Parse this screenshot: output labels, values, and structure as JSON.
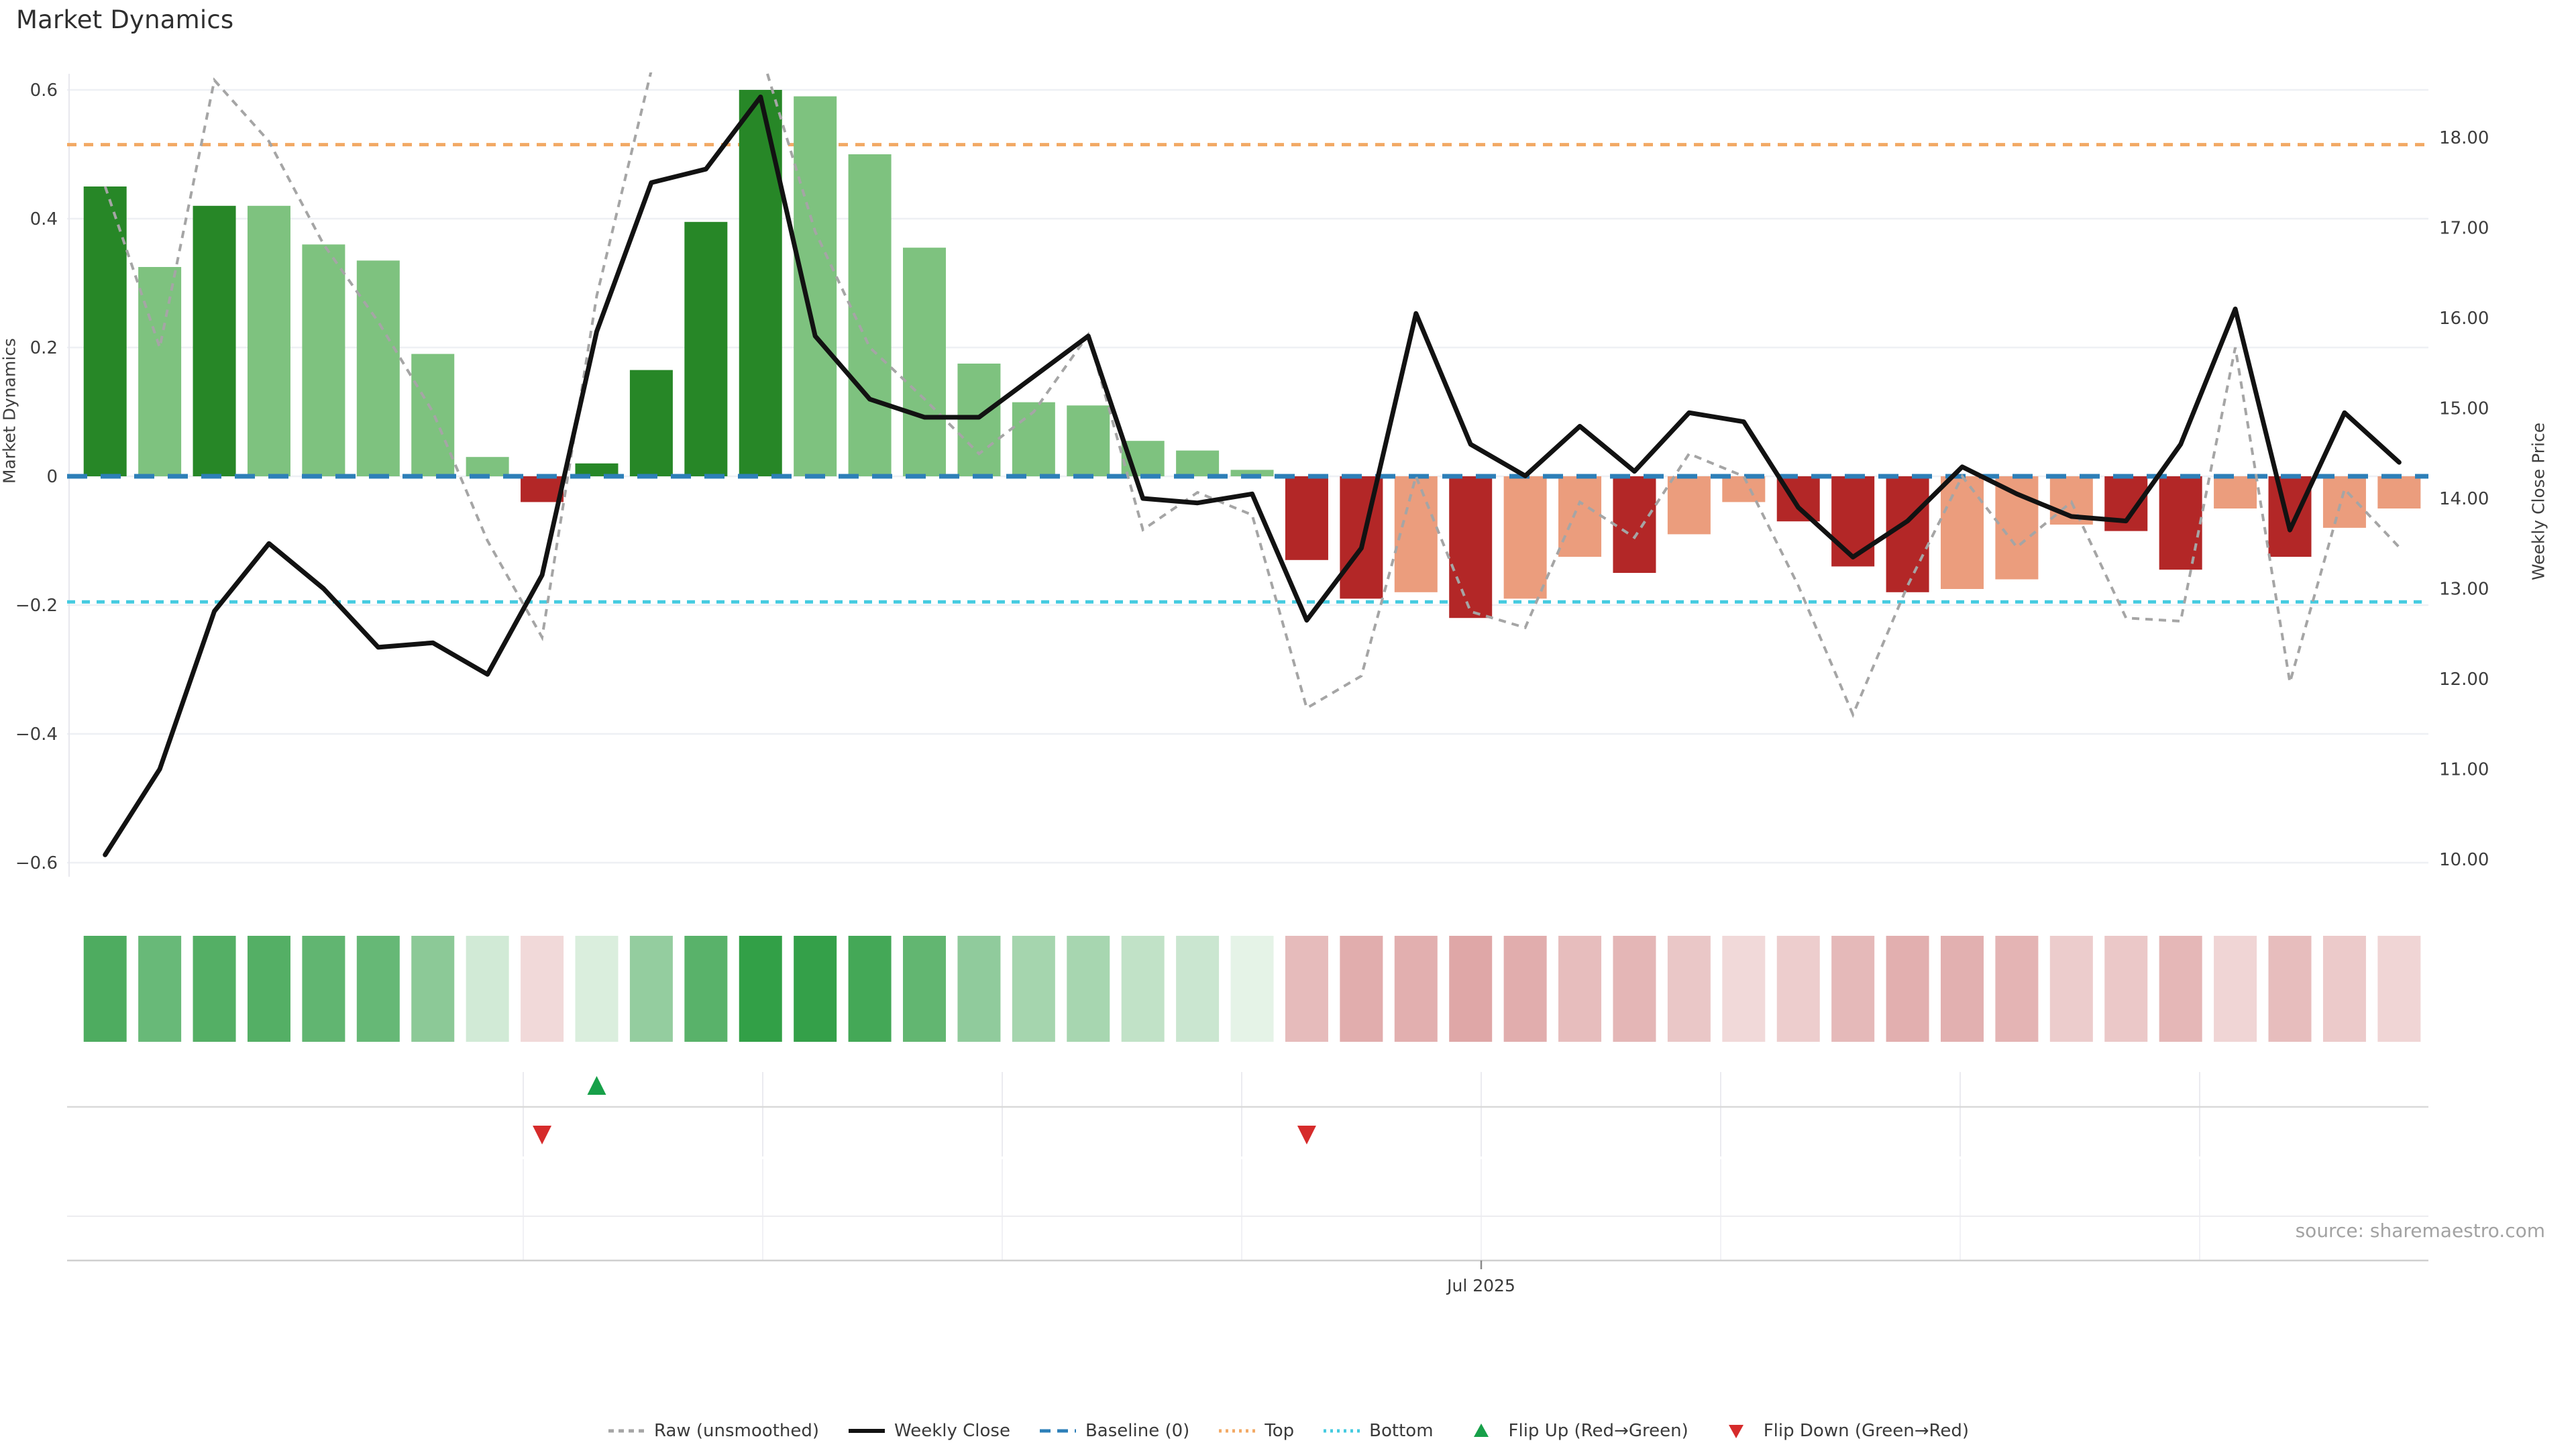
{
  "title": "Market Dynamics",
  "source": "source: sharemaestro.com",
  "axes": {
    "left": {
      "label": "Market Dynamics",
      "ticks": [
        {
          "v": 0.6,
          "label": "0.6"
        },
        {
          "v": 0.4,
          "label": "0.4"
        },
        {
          "v": 0.2,
          "label": "0.2"
        },
        {
          "v": 0.0,
          "label": "0"
        },
        {
          "v": -0.2,
          "label": "−0.2"
        },
        {
          "v": -0.4,
          "label": "−0.4"
        },
        {
          "v": -0.6,
          "label": "−0.6"
        }
      ]
    },
    "right": {
      "label": "Weekly Close Price",
      "ticks": [
        {
          "v": 18,
          "label": "18.00"
        },
        {
          "v": 17,
          "label": "17.00"
        },
        {
          "v": 16,
          "label": "16.00"
        },
        {
          "v": 15,
          "label": "15.00"
        },
        {
          "v": 14,
          "label": "14.00"
        },
        {
          "v": 13,
          "label": "13.00"
        },
        {
          "v": 12,
          "label": "12.00"
        },
        {
          "v": 11,
          "label": "11.00"
        },
        {
          "v": 10,
          "label": "10.00"
        }
      ]
    },
    "x": {
      "tick_label": "Jul 2025"
    }
  },
  "palette": {
    "bar_dark_green": "#278727",
    "bar_light_green": "#7ec27f",
    "bar_dark_red": "#b32727",
    "bar_light_red": "#eb9d7d",
    "baseline_blue": "#2d7fb8",
    "top_orange": "#f2a964",
    "bottom_cyan": "#45cbe0",
    "raw_gray": "#a5a5a5",
    "close_black": "#121212",
    "flip_up_green": "#17a049",
    "flip_down_red": "#d62b2b",
    "grid": "#eef0f4"
  },
  "legend": [
    {
      "label": "Raw (unsmoothed)",
      "marker": "dashed-line",
      "color": "#a5a5a5"
    },
    {
      "label": "Weekly Close",
      "marker": "solid-line",
      "color": "#121212"
    },
    {
      "label": "Baseline (0)",
      "marker": "long-dash-line",
      "color": "#2d7fb8"
    },
    {
      "label": "Top",
      "marker": "dotted-line",
      "color": "#f2a964"
    },
    {
      "label": "Bottom",
      "marker": "dotted-line",
      "color": "#45cbe0"
    },
    {
      "label": "Flip Up (Red→Green)",
      "marker": "triangle-up",
      "color": "#17a049"
    },
    {
      "label": "Flip Down (Green→Red)",
      "marker": "triangle-down",
      "color": "#d62b2b"
    }
  ],
  "chart_data": {
    "type": "combo-bar-line",
    "x_unit": "weekly",
    "n_weeks": 43,
    "x_axis_tick": "Jul 2025",
    "left_axis_range": [
      -0.625,
      0.625
    ],
    "right_axis_range": [
      9.85,
      18.7
    ],
    "grid": "horizontal-left-axis",
    "thresholds": {
      "baseline": 0.0,
      "top": 0.515,
      "bottom": -0.195
    },
    "bars": {
      "name": "Market Dynamics (smoothed)",
      "values": [
        0.45,
        0.325,
        0.42,
        0.42,
        0.36,
        0.335,
        0.19,
        0.03,
        -0.04,
        0.02,
        0.165,
        0.395,
        0.6,
        0.59,
        0.5,
        0.355,
        0.175,
        0.115,
        0.11,
        0.055,
        0.04,
        0.01,
        -0.13,
        -0.19,
        -0.18,
        -0.22,
        -0.19,
        -0.125,
        -0.15,
        -0.09,
        -0.04,
        -0.07,
        -0.14,
        -0.18,
        -0.175,
        -0.16,
        -0.075,
        -0.085,
        -0.145,
        -0.05,
        -0.125,
        -0.08,
        -0.05
      ],
      "shades": [
        "dg",
        "lg",
        "dg",
        "lg",
        "lg",
        "lg",
        "lg",
        "lg",
        "dr",
        "dg",
        "dg",
        "dg",
        "dg",
        "lg",
        "lg",
        "lg",
        "lg",
        "lg",
        "lg",
        "lg",
        "lg",
        "lg",
        "dr",
        "dr",
        "lr",
        "dr",
        "lr",
        "lr",
        "dr",
        "lr",
        "lr",
        "dr",
        "dr",
        "dr",
        "lr",
        "lr",
        "lr",
        "dr",
        "dr",
        "lr",
        "dr",
        "lr",
        "lr"
      ]
    },
    "raw": {
      "name": "Raw (unsmoothed)",
      "values": [
        0.45,
        0.2,
        0.615,
        0.52,
        0.36,
        0.24,
        0.1,
        -0.1,
        -0.25,
        0.28,
        0.63,
        0.7,
        0.66,
        0.38,
        0.2,
        0.12,
        0.035,
        0.1,
        0.22,
        -0.083,
        -0.025,
        -0.06,
        -0.36,
        -0.31,
        0.0,
        -0.21,
        -0.235,
        -0.04,
        -0.095,
        0.035,
        0.0,
        -0.17,
        -0.37,
        -0.17,
        0.0,
        -0.11,
        -0.04,
        -0.22,
        -0.225,
        0.2,
        -0.32,
        -0.02,
        -0.11
      ]
    },
    "weekly_close": {
      "name": "Weekly Close",
      "values": [
        10.05,
        11.0,
        12.75,
        13.5,
        13.0,
        12.35,
        12.4,
        12.05,
        13.15,
        15.85,
        17.5,
        17.65,
        18.45,
        15.8,
        15.1,
        14.9,
        14.9,
        15.35,
        15.8,
        14.0,
        13.95,
        14.05,
        12.65,
        13.45,
        16.05,
        14.6,
        14.25,
        14.8,
        14.3,
        14.95,
        14.85,
        13.9,
        13.35,
        13.75,
        14.35,
        14.05,
        13.8,
        13.75,
        14.6,
        16.1,
        13.65,
        14.95,
        14.4
      ]
    },
    "heatmap": {
      "note": "color strip encodes smoothed bar values (green positive, red negative)"
    },
    "flips": {
      "up_weeks": [
        10
      ],
      "down_weeks": [
        9,
        23
      ]
    }
  }
}
